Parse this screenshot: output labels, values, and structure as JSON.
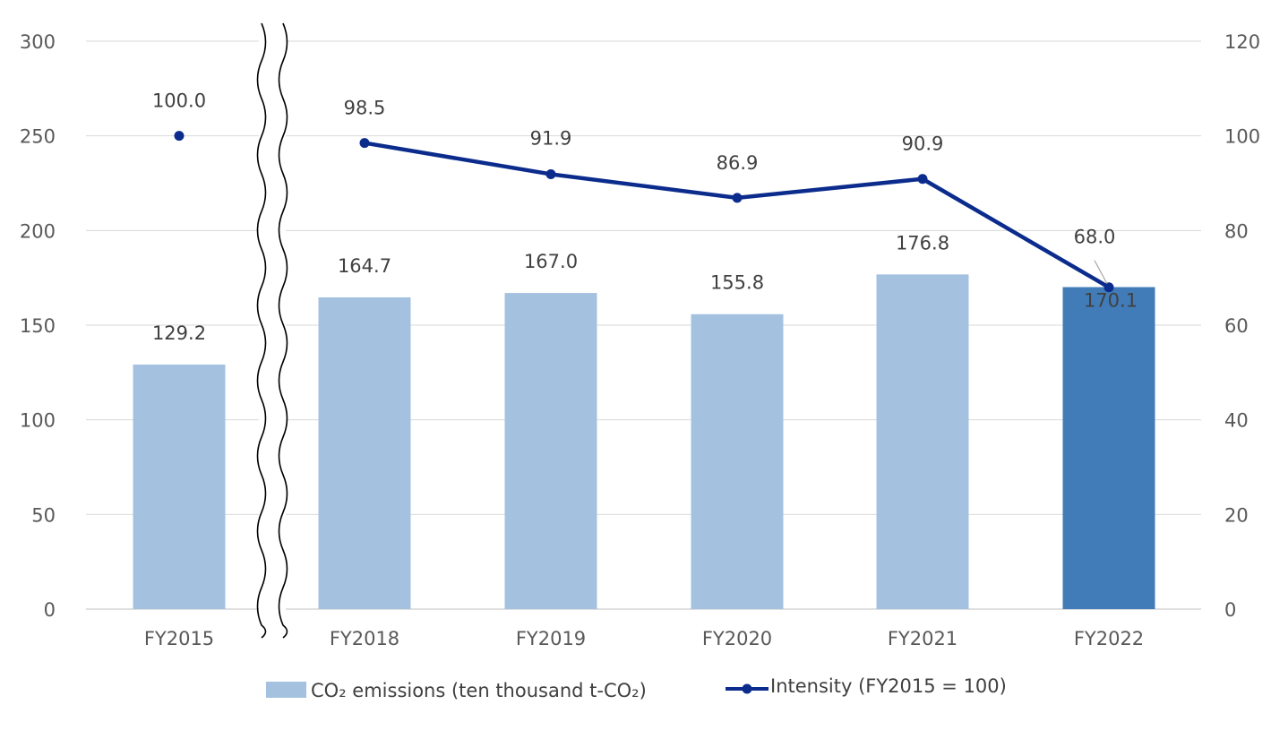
{
  "chart_data": {
    "type": "bar",
    "categories": [
      "FY2015",
      "FY2018",
      "FY2019",
      "FY2020",
      "FY2021",
      "FY2022"
    ],
    "series": [
      {
        "name": "CO₂ emissions (ten thousand t-CO₂)",
        "type": "bar",
        "axis": "left",
        "values": [
          129.2,
          164.7,
          167.0,
          155.8,
          176.8,
          170.1
        ],
        "labels": [
          "129.2",
          "164.7",
          "167.0",
          "155.8",
          "176.8",
          "170.1"
        ],
        "color": "#a4c2e0",
        "highlight_color": "#417cb8",
        "highlight_category": "FY2022"
      },
      {
        "name": "Intensity (FY2015 = 100)",
        "type": "line",
        "axis": "right",
        "values": [
          100.0,
          98.5,
          91.9,
          86.9,
          90.9,
          68.0
        ],
        "labels": [
          "100.0",
          "98.5",
          "91.9",
          "86.9",
          "90.9",
          "68.0"
        ],
        "color": "#0b2c8c",
        "line_break_after": "FY2015"
      }
    ],
    "left_axis": {
      "ylim": [
        0,
        300
      ],
      "ticks": [
        "0",
        "50",
        "100",
        "150",
        "200",
        "250",
        "300"
      ]
    },
    "right_axis": {
      "ylim": [
        0,
        120
      ],
      "ticks": [
        "0",
        "20",
        "40",
        "60",
        "80",
        "100",
        "120"
      ]
    },
    "axis_break_between": [
      "FY2015",
      "FY2018"
    ],
    "grid": true,
    "legend_position": "bottom",
    "title": "",
    "xlabel": "",
    "ylabel": ""
  }
}
